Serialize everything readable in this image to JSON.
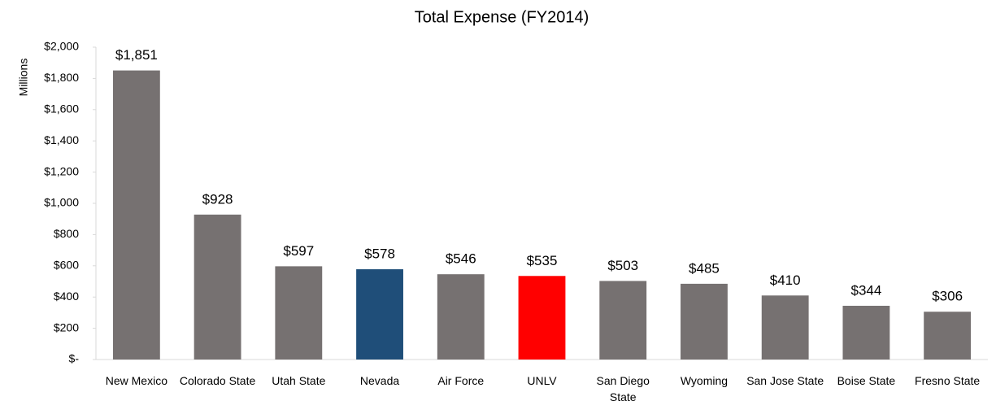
{
  "chart_data": {
    "type": "bar",
    "title": "Total Expense (FY2014)",
    "y_label": "Millions",
    "categories": [
      "New Mexico",
      "Colorado State",
      "Utah State",
      "Nevada",
      "Air Force",
      "UNLV",
      "San Diego State",
      "Wyoming",
      "San Jose State",
      "Boise State",
      "Fresno State"
    ],
    "values": [
      1851,
      928,
      597,
      578,
      546,
      535,
      503,
      485,
      410,
      344,
      306
    ],
    "value_labels": [
      "$1,851",
      "$928",
      "$597",
      "$578",
      "$546",
      "$535",
      "$503",
      "$485",
      "$410",
      "$344",
      "$306"
    ],
    "colors": [
      "#767171",
      "#767171",
      "#767171",
      "#1f4e79",
      "#767171",
      "#ff0000",
      "#767171",
      "#767171",
      "#767171",
      "#767171",
      "#767171"
    ],
    "ylim": [
      0,
      2000
    ],
    "yticks": [
      {
        "value": 0,
        "label": "$-"
      },
      {
        "value": 200,
        "label": "$200"
      },
      {
        "value": 400,
        "label": "$400"
      },
      {
        "value": 600,
        "label": "$600"
      },
      {
        "value": 800,
        "label": "$800"
      },
      {
        "value": 1000,
        "label": "$1,000"
      },
      {
        "value": 1200,
        "label": "$1,200"
      },
      {
        "value": 1400,
        "label": "$1,400"
      },
      {
        "value": 1600,
        "label": "$1,600"
      },
      {
        "value": 1800,
        "label": "$1,800"
      },
      {
        "value": 2000,
        "label": "$2,000"
      }
    ],
    "grid": false
  }
}
